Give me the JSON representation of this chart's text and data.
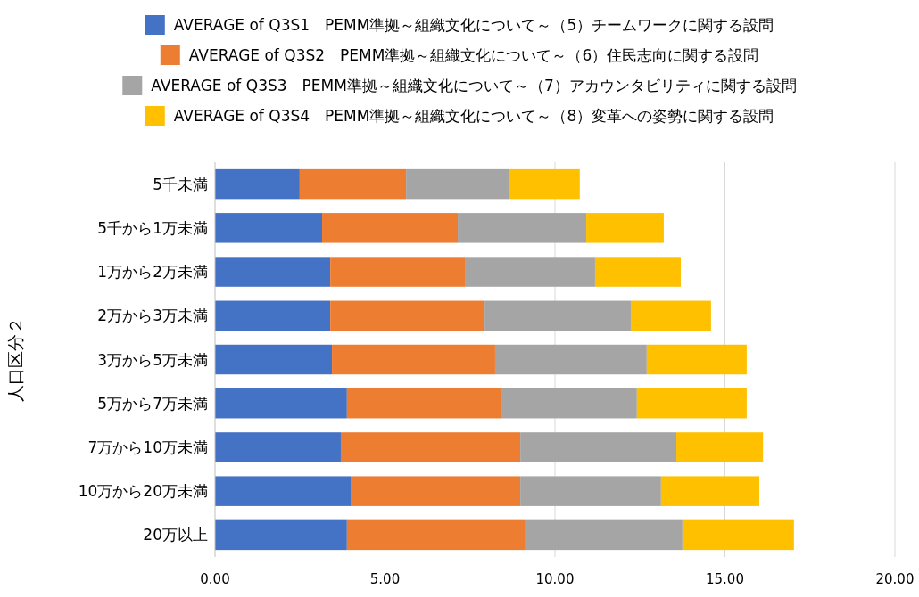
{
  "chart_data": {
    "type": "bar",
    "orientation": "horizontal",
    "stacked": true,
    "categories": [
      "5千未満",
      "5千から1万未満",
      "1万から2万未満",
      "2万から3万未満",
      "3万から5万未満",
      "5万から7万未満",
      "7万から10万未満",
      "10万から20万未満",
      "20万以上"
    ],
    "ylabel": "人口区分２",
    "series": [
      {
        "name": "AVERAGE of Q3S1　PEMM準拠～組織文化について～（5）チームワークに関する設問",
        "color": "#4472c4",
        "values": [
          2.49,
          3.15,
          3.39,
          3.39,
          3.44,
          3.88,
          3.7,
          3.99,
          3.88
        ]
      },
      {
        "name": "AVERAGE of Q3S2　PEMM準拠～組織文化について～（6）住民志向に関する設問",
        "color": "#ed7d31",
        "values": [
          3.13,
          3.99,
          3.96,
          4.54,
          4.8,
          4.52,
          5.28,
          4.99,
          5.25
        ]
      },
      {
        "name": "AVERAGE of Q3S3　PEMM準拠～組織文化について～（7）アカウンタビリティに関する設問",
        "color": "#a5a5a5",
        "values": [
          3.04,
          3.78,
          3.83,
          4.3,
          4.46,
          4.01,
          4.59,
          4.14,
          4.62
        ]
      },
      {
        "name": "AVERAGE of Q3S4　PEMM準拠～組織文化について～（8）変革への姿勢に関する設問",
        "color": "#ffc000",
        "values": [
          2.07,
          2.28,
          2.52,
          2.36,
          2.94,
          3.23,
          2.55,
          2.89,
          3.28
        ]
      }
    ],
    "xlim": [
      0,
      20
    ],
    "xticks": [
      {
        "value": 0,
        "label": "0.00"
      },
      {
        "value": 5,
        "label": "5.00"
      },
      {
        "value": 10,
        "label": "10.00"
      },
      {
        "value": 15,
        "label": "15.00"
      },
      {
        "value": 20,
        "label": "20.00"
      }
    ],
    "grid": "x",
    "legend": "top"
  }
}
